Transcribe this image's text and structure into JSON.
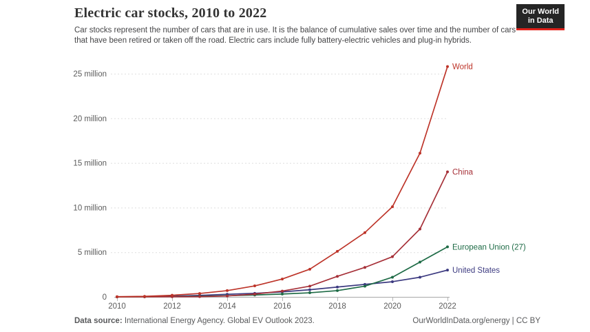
{
  "header": {
    "title": "Electric car stocks, 2010 to 2022",
    "subtitle": "Car stocks represent the number of cars that are in use. It is the balance of cumulative sales over time and the number of cars that have been retired or taken off the road. Electric cars include fully battery-electric vehicles and plug-in hybrids.",
    "logo": {
      "line1": "Our World",
      "line2": "in Data",
      "bg_color": "#252525",
      "accent_color": "#e0211a"
    }
  },
  "footer": {
    "source_label": "Data source:",
    "source_text": " International Energy Agency. Global EV Outlook 2023.",
    "right_text": "OurWorldInData.org/energy | CC BY"
  },
  "chart_data": {
    "type": "line",
    "title": "Electric car stocks, 2010 to 2022",
    "unit": "million cars",
    "x": [
      2010,
      2011,
      2012,
      2013,
      2014,
      2015,
      2016,
      2017,
      2018,
      2019,
      2020,
      2021,
      2022
    ],
    "series": [
      {
        "name": "World",
        "color": "#bd3429",
        "values": [
          0.02,
          0.06,
          0.18,
          0.38,
          0.7,
          1.23,
          2.0,
          3.1,
          5.1,
          7.2,
          10.1,
          16.1,
          25.8
        ]
      },
      {
        "name": "China",
        "color": "#a63038",
        "values": [
          0.0,
          0.01,
          0.02,
          0.03,
          0.1,
          0.31,
          0.65,
          1.2,
          2.3,
          3.3,
          4.5,
          7.6,
          14.0
        ]
      },
      {
        "name": "European Union (27)",
        "color": "#1e6b46",
        "values": [
          0.0,
          0.01,
          0.03,
          0.07,
          0.13,
          0.21,
          0.32,
          0.46,
          0.7,
          1.2,
          2.2,
          3.9,
          5.6
        ]
      },
      {
        "name": "United States",
        "color": "#3c3a80",
        "values": [
          0.0,
          0.02,
          0.07,
          0.17,
          0.29,
          0.4,
          0.56,
          0.8,
          1.1,
          1.4,
          1.7,
          2.2,
          3.0
        ]
      }
    ],
    "yticks": [
      {
        "v": 0,
        "label": "0"
      },
      {
        "v": 5,
        "label": "5 million"
      },
      {
        "v": 10,
        "label": "10 million"
      },
      {
        "v": 15,
        "label": "15 million"
      },
      {
        "v": 20,
        "label": "20 million"
      },
      {
        "v": 25,
        "label": "25 million"
      }
    ],
    "xticks": [
      2010,
      2012,
      2014,
      2016,
      2018,
      2020,
      2022
    ],
    "ylim": [
      0,
      25.8
    ],
    "grid": true,
    "legend_position": "end-of-line",
    "grid_color": "#dedede",
    "axis_color": "#a6a6a6",
    "tick_label_color": "#5b5b5b"
  }
}
